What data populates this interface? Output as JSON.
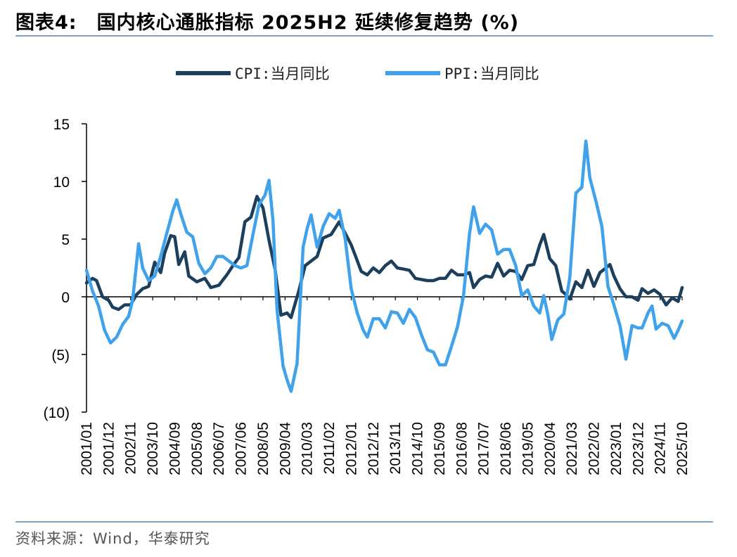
{
  "header": {
    "figure_label": "图表4:",
    "title": "国内核心通胀指标 2025H2 延续修复趋势 (%)"
  },
  "footer": {
    "source": "资料来源：Wind，华泰研究"
  },
  "colors": {
    "cpi": "#1b3f5c",
    "ppi": "#3fa2ea",
    "rule": "#7fa3c0",
    "zero_line": "#000000"
  },
  "chart_data": {
    "type": "line",
    "title": "国内核心通胀指标 2025H2 延续修复趋势 (%)",
    "xlabel": "",
    "ylabel": "",
    "ylim": [
      -10,
      15
    ],
    "yticks": [
      15,
      10,
      5,
      0,
      -5,
      -10
    ],
    "ytick_labels": [
      "15",
      "10",
      "5",
      "0",
      "(5)",
      "(10)"
    ],
    "x_range": [
      "2001/01",
      "2025/10"
    ],
    "xtick_labels": [
      "2001/01",
      "2001/12",
      "2002/11",
      "2003/10",
      "2004/09",
      "2005/08",
      "2006/07",
      "2007/06",
      "2008/05",
      "2009/04",
      "2010/03",
      "2011/02",
      "2012/01",
      "2012/12",
      "2013/11",
      "2014/10",
      "2015/09",
      "2016/08",
      "2017/07",
      "2018/06",
      "2019/05",
      "2020/04",
      "2021/03",
      "2022/02",
      "2023/01",
      "2023/12",
      "2024/11",
      "2025/10"
    ],
    "legend_position": "top-center",
    "grid": false,
    "series": [
      {
        "name": "CPI:当月同比",
        "points": [
          [
            "2001/01",
            1.2
          ],
          [
            "2001/04",
            1.6
          ],
          [
            "2001/06",
            1.4
          ],
          [
            "2001/09",
            0.0
          ],
          [
            "2001/12",
            -0.3
          ],
          [
            "2002/02",
            -0.9
          ],
          [
            "2002/05",
            -1.1
          ],
          [
            "2002/08",
            -0.7
          ],
          [
            "2002/11",
            -0.7
          ],
          [
            "2003/02",
            0.2
          ],
          [
            "2003/05",
            0.7
          ],
          [
            "2003/08",
            0.9
          ],
          [
            "2003/11",
            3.0
          ],
          [
            "2004/02",
            2.1
          ],
          [
            "2004/04",
            3.8
          ],
          [
            "2004/07",
            5.3
          ],
          [
            "2004/09",
            5.2
          ],
          [
            "2004/11",
            2.8
          ],
          [
            "2005/02",
            3.9
          ],
          [
            "2005/04",
            1.8
          ],
          [
            "2005/08",
            1.3
          ],
          [
            "2005/12",
            1.6
          ],
          [
            "2006/03",
            0.8
          ],
          [
            "2006/07",
            1.0
          ],
          [
            "2006/11",
            1.9
          ],
          [
            "2007/02",
            2.7
          ],
          [
            "2007/05",
            3.4
          ],
          [
            "2007/08",
            6.5
          ],
          [
            "2007/11",
            6.9
          ],
          [
            "2008/02",
            8.7
          ],
          [
            "2008/05",
            7.7
          ],
          [
            "2008/08",
            4.9
          ],
          [
            "2008/11",
            2.4
          ],
          [
            "2009/02",
            -1.6
          ],
          [
            "2009/05",
            -1.4
          ],
          [
            "2009/07",
            -1.8
          ],
          [
            "2009/11",
            0.6
          ],
          [
            "2010/02",
            2.7
          ],
          [
            "2010/05",
            3.1
          ],
          [
            "2010/08",
            3.5
          ],
          [
            "2010/11",
            5.1
          ],
          [
            "2011/03",
            5.4
          ],
          [
            "2011/07",
            6.5
          ],
          [
            "2011/10",
            5.5
          ],
          [
            "2012/01",
            4.5
          ],
          [
            "2012/03",
            3.6
          ],
          [
            "2012/06",
            2.2
          ],
          [
            "2012/09",
            1.9
          ],
          [
            "2012/12",
            2.5
          ],
          [
            "2013/03",
            2.1
          ],
          [
            "2013/06",
            2.7
          ],
          [
            "2013/09",
            3.1
          ],
          [
            "2013/12",
            2.5
          ],
          [
            "2014/03",
            2.4
          ],
          [
            "2014/06",
            2.3
          ],
          [
            "2014/09",
            1.6
          ],
          [
            "2014/12",
            1.5
          ],
          [
            "2015/03",
            1.4
          ],
          [
            "2015/06",
            1.4
          ],
          [
            "2015/09",
            1.6
          ],
          [
            "2015/12",
            1.6
          ],
          [
            "2016/03",
            2.3
          ],
          [
            "2016/06",
            1.9
          ],
          [
            "2016/09",
            1.9
          ],
          [
            "2016/12",
            2.1
          ],
          [
            "2017/02",
            0.8
          ],
          [
            "2017/05",
            1.5
          ],
          [
            "2017/08",
            1.8
          ],
          [
            "2017/11",
            1.7
          ],
          [
            "2018/02",
            2.9
          ],
          [
            "2018/05",
            1.8
          ],
          [
            "2018/08",
            2.3
          ],
          [
            "2018/11",
            2.2
          ],
          [
            "2019/02",
            1.5
          ],
          [
            "2019/05",
            2.7
          ],
          [
            "2019/08",
            2.8
          ],
          [
            "2019/11",
            4.5
          ],
          [
            "2020/01",
            5.4
          ],
          [
            "2020/04",
            3.3
          ],
          [
            "2020/07",
            2.7
          ],
          [
            "2020/10",
            0.5
          ],
          [
            "2020/12",
            0.2
          ],
          [
            "2021/02",
            -0.2
          ],
          [
            "2021/05",
            1.3
          ],
          [
            "2021/08",
            0.8
          ],
          [
            "2021/11",
            2.3
          ],
          [
            "2022/02",
            0.9
          ],
          [
            "2022/05",
            2.1
          ],
          [
            "2022/08",
            2.5
          ],
          [
            "2022/10",
            2.8
          ],
          [
            "2022/12",
            1.8
          ],
          [
            "2023/03",
            0.7
          ],
          [
            "2023/06",
            0.0
          ],
          [
            "2023/09",
            0.0
          ],
          [
            "2023/12",
            -0.3
          ],
          [
            "2024/02",
            0.7
          ],
          [
            "2024/05",
            0.3
          ],
          [
            "2024/08",
            0.6
          ],
          [
            "2024/11",
            0.2
          ],
          [
            "2025/02",
            -0.7
          ],
          [
            "2025/05",
            -0.1
          ],
          [
            "2025/08",
            -0.4
          ],
          [
            "2025/10",
            0.8
          ]
        ]
      },
      {
        "name": "PPI:当月同比",
        "points": [
          [
            "2001/01",
            2.3
          ],
          [
            "2001/04",
            0.5
          ],
          [
            "2001/07",
            -0.8
          ],
          [
            "2001/10",
            -2.9
          ],
          [
            "2002/01",
            -4.0
          ],
          [
            "2002/04",
            -3.5
          ],
          [
            "2002/07",
            -2.4
          ],
          [
            "2002/10",
            -1.7
          ],
          [
            "2002/12",
            -0.3
          ],
          [
            "2003/03",
            4.6
          ],
          [
            "2003/05",
            2.5
          ],
          [
            "2003/08",
            1.4
          ],
          [
            "2003/11",
            1.8
          ],
          [
            "2004/02",
            3.5
          ],
          [
            "2004/05",
            5.5
          ],
          [
            "2004/08",
            7.4
          ],
          [
            "2004/10",
            8.4
          ],
          [
            "2004/12",
            7.2
          ],
          [
            "2005/03",
            5.6
          ],
          [
            "2005/06",
            5.2
          ],
          [
            "2005/09",
            2.9
          ],
          [
            "2005/12",
            2.0
          ],
          [
            "2006/03",
            2.5
          ],
          [
            "2006/06",
            3.5
          ],
          [
            "2006/09",
            3.5
          ],
          [
            "2006/12",
            3.1
          ],
          [
            "2007/03",
            2.7
          ],
          [
            "2007/06",
            2.5
          ],
          [
            "2007/09",
            2.7
          ],
          [
            "2007/12",
            5.4
          ],
          [
            "2008/03",
            8.0
          ],
          [
            "2008/06",
            8.8
          ],
          [
            "2008/08",
            10.1
          ],
          [
            "2008/10",
            6.6
          ],
          [
            "2008/12",
            -1.1
          ],
          [
            "2009/03",
            -6.0
          ],
          [
            "2009/05",
            -7.2
          ],
          [
            "2009/07",
            -8.2
          ],
          [
            "2009/10",
            -5.8
          ],
          [
            "2010/01",
            4.3
          ],
          [
            "2010/03",
            5.9
          ],
          [
            "2010/05",
            7.1
          ],
          [
            "2010/08",
            4.3
          ],
          [
            "2010/11",
            6.1
          ],
          [
            "2011/02",
            7.2
          ],
          [
            "2011/05",
            6.8
          ],
          [
            "2011/07",
            7.5
          ],
          [
            "2011/10",
            5.0
          ],
          [
            "2012/01",
            0.7
          ],
          [
            "2012/04",
            -1.4
          ],
          [
            "2012/07",
            -2.9
          ],
          [
            "2012/09",
            -3.5
          ],
          [
            "2012/12",
            -1.9
          ],
          [
            "2013/03",
            -1.9
          ],
          [
            "2013/06",
            -2.7
          ],
          [
            "2013/09",
            -1.3
          ],
          [
            "2013/12",
            -1.4
          ],
          [
            "2014/03",
            -2.3
          ],
          [
            "2014/06",
            -1.1
          ],
          [
            "2014/09",
            -1.8
          ],
          [
            "2014/12",
            -3.3
          ],
          [
            "2015/03",
            -4.6
          ],
          [
            "2015/06",
            -4.8
          ],
          [
            "2015/09",
            -5.9
          ],
          [
            "2015/12",
            -5.9
          ],
          [
            "2016/03",
            -4.3
          ],
          [
            "2016/06",
            -2.6
          ],
          [
            "2016/09",
            0.1
          ],
          [
            "2016/12",
            5.5
          ],
          [
            "2017/02",
            7.8
          ],
          [
            "2017/05",
            5.5
          ],
          [
            "2017/08",
            6.3
          ],
          [
            "2017/11",
            5.8
          ],
          [
            "2018/02",
            3.7
          ],
          [
            "2018/05",
            4.1
          ],
          [
            "2018/08",
            4.1
          ],
          [
            "2018/11",
            2.7
          ],
          [
            "2019/02",
            0.1
          ],
          [
            "2019/05",
            0.6
          ],
          [
            "2019/08",
            -0.8
          ],
          [
            "2019/11",
            -1.4
          ],
          [
            "2020/01",
            0.1
          ],
          [
            "2020/03",
            -1.5
          ],
          [
            "2020/05",
            -3.7
          ],
          [
            "2020/08",
            -2.0
          ],
          [
            "2020/11",
            -1.5
          ],
          [
            "2021/02",
            1.7
          ],
          [
            "2021/05",
            9.0
          ],
          [
            "2021/08",
            9.5
          ],
          [
            "2021/10",
            13.5
          ],
          [
            "2021/12",
            10.3
          ],
          [
            "2022/03",
            8.3
          ],
          [
            "2022/06",
            6.1
          ],
          [
            "2022/09",
            0.9
          ],
          [
            "2022/12",
            -0.7
          ],
          [
            "2023/03",
            -2.5
          ],
          [
            "2023/06",
            -5.4
          ],
          [
            "2023/09",
            -2.5
          ],
          [
            "2023/12",
            -2.7
          ],
          [
            "2024/02",
            -2.7
          ],
          [
            "2024/05",
            -1.4
          ],
          [
            "2024/07",
            -0.8
          ],
          [
            "2024/09",
            -2.8
          ],
          [
            "2024/12",
            -2.3
          ],
          [
            "2025/03",
            -2.5
          ],
          [
            "2025/06",
            -3.6
          ],
          [
            "2025/08",
            -2.9
          ],
          [
            "2025/10",
            -2.1
          ]
        ]
      }
    ]
  }
}
